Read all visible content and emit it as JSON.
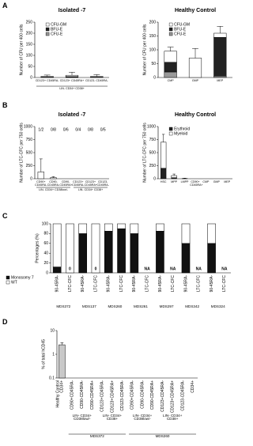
{
  "panel_labels": [
    "A",
    "B",
    "C",
    "D"
  ],
  "chart_data": [
    {
      "type": "bar",
      "title": "Isolated -7",
      "ylabel": "Number of CFU per 400 cells",
      "groups": [
        {
          "label": "LIN- CD34+ CD38+",
          "categories": [
            "CD123+ CD45RA-",
            "CD123+ CD45RA+",
            "CD123- CD45RA-"
          ]
        }
      ],
      "series": [
        {
          "name": "CFU-GM",
          "color": "#ffffff",
          "values": [
            3,
            6,
            3
          ]
        },
        {
          "name": "BFU-E",
          "color": "#222222",
          "values": [
            1,
            2,
            1
          ]
        },
        {
          "name": "CFU-E",
          "color": "#999999",
          "values": [
            1,
            2,
            1
          ]
        }
      ],
      "errors": [
        6,
        14,
        8
      ],
      "stack_from": "last",
      "ylim": [
        0,
        250
      ],
      "yticks": [
        0,
        50,
        100,
        150,
        200,
        250
      ],
      "legend": "upper left"
    },
    {
      "type": "bar",
      "title": "Healthy Control",
      "ylabel": "Number of CFU per 400 cells",
      "categories": [
        "CMP",
        "GMP",
        "MEP"
      ],
      "series": [
        {
          "name": "CFU-GM",
          "color": "#ffffff",
          "values": [
            40,
            70,
            15
          ]
        },
        {
          "name": "BFU-E",
          "color": "#222222",
          "values": [
            35,
            0,
            140
          ]
        },
        {
          "name": "CFU-E",
          "color": "#999999",
          "values": [
            20,
            0,
            5
          ]
        }
      ],
      "errors": [
        15,
        35,
        25
      ],
      "stack_from": "last",
      "ylim": [
        0,
        200
      ],
      "yticks": [
        0,
        50,
        100,
        150,
        200
      ],
      "legend": "upper left"
    },
    {
      "type": "bar",
      "title": "Isolated -7",
      "ylabel": "Number of LTC-CFC per 750 cells",
      "groups": [
        {
          "label": "LIN- CD34+ CD38low/-",
          "categories": [
            "CD90+ CD45RA-",
            "CD90- CD45RA-",
            "CD90- CD45RA+"
          ]
        },
        {
          "label": "LIN- CD34+ CD38+",
          "categories": [
            "CD123+ CD45RA-",
            "CD123+ CD45RA+",
            "CD123- CD45RA-"
          ]
        }
      ],
      "series": [
        {
          "name": "Erythroid",
          "color": "#222222",
          "values": [
            0,
            0,
            0,
            0,
            0,
            0
          ]
        },
        {
          "name": "Myeloid",
          "color": "#ffffff",
          "values": [
            130,
            20,
            0,
            0,
            0,
            0
          ]
        }
      ],
      "errors": [
        250,
        20,
        null,
        null,
        null,
        null
      ],
      "annotations": [
        "1/2",
        "0/8",
        "0/6",
        "0/4",
        "0/8",
        "0/5"
      ],
      "ylim": [
        0,
        1000
      ],
      "yticks": [
        0,
        250,
        500,
        750,
        1000
      ]
    },
    {
      "type": "bar",
      "title": "Healthy Control",
      "ylabel": "Number of LTC-CFC per 750 cells",
      "categories": [
        "HSC",
        "MPP",
        "LMPP",
        "CD90+ CD45RA+",
        "CMP",
        "GMP",
        "MEP"
      ],
      "series": [
        {
          "name": "Erythroid",
          "color": "#222222",
          "values": [
            200,
            20,
            0,
            0,
            0,
            0,
            0
          ]
        },
        {
          "name": "Myeloid",
          "color": "#ffffff",
          "values": [
            500,
            40,
            5,
            0,
            0,
            0,
            0
          ]
        }
      ],
      "errors": [
        150,
        30,
        5,
        null,
        null,
        null,
        null
      ],
      "ylim": [
        0,
        1000
      ],
      "yticks": [
        0,
        250,
        500,
        750,
        1000
      ],
      "legend": "upper left"
    },
    {
      "type": "bar",
      "ylabel": "Percentages (%)",
      "groups": [
        {
          "label": "MDS372",
          "categories": [
            "90-45RA-",
            "LTC-CFC"
          ]
        },
        {
          "label": "MDS137",
          "categories": [
            "90-45RA-",
            "LTC-CFC"
          ]
        },
        {
          "label": "MDS260",
          "categories": [
            "90-45RA-",
            "LTC-CFC"
          ]
        },
        {
          "label": "MDS261",
          "categories": [
            "90-45RA-",
            "LTC-CFC"
          ]
        },
        {
          "label": "MDS297",
          "categories": [
            "90-45RA-",
            "LTC-CFC"
          ]
        },
        {
          "label": "MDS342",
          "categories": [
            "90-45RA-",
            "LTC-CFC"
          ]
        },
        {
          "label": "MDS324",
          "categories": [
            "90-45RA-",
            "LTC-CFC"
          ]
        }
      ],
      "series": [
        {
          "name": "Monosomy 7",
          "color": "#111111",
          "values": [
            12,
            0,
            80,
            0,
            85,
            90,
            80,
            null,
            85,
            null,
            60,
            null,
            60,
            null
          ],
          "value_labels": [
            null,
            "0",
            null,
            "0",
            null,
            null,
            null,
            "NA",
            null,
            "NA",
            null,
            "NA",
            null,
            "NA"
          ]
        },
        {
          "name": "WT",
          "color": "#ffffff",
          "values": [
            88,
            100,
            20,
            100,
            15,
            10,
            20,
            null,
            15,
            null,
            40,
            null,
            40,
            null
          ]
        }
      ],
      "ylim": [
        0,
        100
      ],
      "yticks": [
        0,
        20,
        40,
        60,
        80,
        100
      ],
      "legend": "lower left"
    },
    {
      "type": "bar",
      "ylabel": "% of total hCD45",
      "log_scale": true,
      "groups": [
        {
          "label": "Healthy Control",
          "categories": [
            "CD34+"
          ]
        },
        {
          "label": "MDS372",
          "subgroups": [
            {
              "label": "LIN- CD34+ CD38low/-",
              "categories": [
                "CD90+CD45RA-",
                "CD90-CD45RA-",
                "CD90-CD45RA+"
              ]
            },
            {
              "label": "LIN- CD34+ CD38+",
              "categories": [
                "CD123+CD45RA-",
                "CD123+CD45RA+",
                "CD123-CD45RA-"
              ]
            }
          ]
        },
        {
          "label": "MDS260",
          "subgroups": [
            {
              "label": "LIN- CD34+ CD38low/-",
              "categories": [
                "CD90+CD45RA-",
                "CD90-CD45RA-",
                "CD90-CD45RA+"
              ]
            },
            {
              "label": "LIN- CD34+ CD38+",
              "categories": [
                "CD123+CD45RA-",
                "CD123+CD45RA+",
                "CD123-CD45RA-"
              ]
            },
            {
              "categories": [
                "CD34+"
              ]
            }
          ]
        }
      ],
      "values": [
        2.5,
        null,
        null,
        null,
        null,
        null,
        null,
        null,
        null,
        null,
        null,
        null,
        null,
        null
      ],
      "color": "#c8c8c8",
      "errors": [
        0.6,
        null,
        null,
        null,
        null,
        null,
        null,
        null,
        null,
        null,
        null,
        null,
        null,
        null
      ],
      "ylim": [
        0.1,
        10
      ],
      "yticks": [
        0.1,
        1,
        10
      ]
    }
  ]
}
